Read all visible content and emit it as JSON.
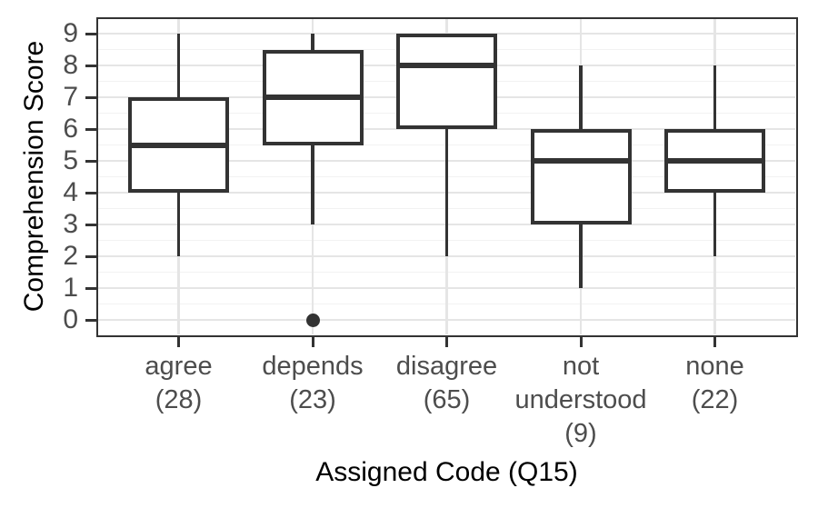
{
  "chart_data": {
    "type": "boxplot",
    "title": "",
    "xlabel": "Assigned Code (Q15)",
    "ylabel": "Comprehension Score",
    "ylim": [
      0,
      9
    ],
    "yticks": [
      0,
      1,
      2,
      3,
      4,
      5,
      6,
      7,
      8,
      9
    ],
    "grid": "major horizontal + minor horizontal at 0.5 steps + major vertical at categories",
    "legend": "none",
    "categories": [
      {
        "name": "agree",
        "count_label": "(28)",
        "label_lines": [
          "agree",
          "(28)"
        ],
        "whisker_low": 2,
        "q1": 4,
        "median": 5.5,
        "q3": 7,
        "whisker_high": 9,
        "outliers": []
      },
      {
        "name": "depends",
        "count_label": "(23)",
        "label_lines": [
          "depends",
          "(23)"
        ],
        "whisker_low": 3,
        "q1": 5.5,
        "median": 7,
        "q3": 8.5,
        "whisker_high": 9,
        "outliers": [
          0
        ]
      },
      {
        "name": "disagree",
        "count_label": "(65)",
        "label_lines": [
          "disagree",
          "(65)"
        ],
        "whisker_low": 2,
        "q1": 6,
        "median": 8,
        "q3": 9,
        "whisker_high": 9,
        "outliers": []
      },
      {
        "name": "not understood",
        "count_label": "(9)",
        "label_lines": [
          "not",
          "understood",
          "(9)"
        ],
        "whisker_low": 1,
        "q1": 3,
        "median": 5,
        "q3": 6,
        "whisker_high": 8,
        "outliers": []
      },
      {
        "name": "none",
        "count_label": "(22)",
        "label_lines": [
          "none",
          "(22)"
        ],
        "whisker_low": 2,
        "q1": 4,
        "median": 5,
        "q3": 6,
        "whisker_high": 8,
        "outliers": []
      }
    ],
    "colors": {
      "background": "#ffffff",
      "panel_background": "#ffffff",
      "panel_border": "#333333",
      "grid_major": "#e5e5e5",
      "grid_minor": "#f2f2f2",
      "box_stroke": "#333333",
      "outlier_fill": "#333333",
      "tick_label": "#4d4d4d",
      "axis_title": "#000000"
    }
  }
}
